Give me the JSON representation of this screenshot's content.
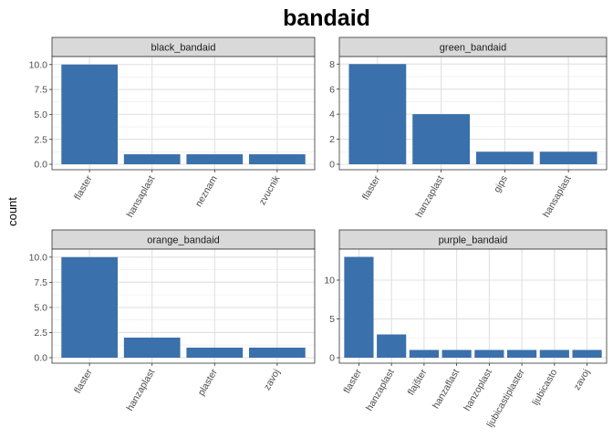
{
  "chart_data": {
    "type": "bar",
    "title": "bandaid",
    "ylabel": "count",
    "xlabel": "",
    "grid": true,
    "bar_color": "#3a70ab",
    "strip_fill": "#d9d9d9",
    "panels": [
      {
        "name": "black_bandaid",
        "categories": [
          "flaster",
          "hansaplast",
          "neznam",
          "zvucnik"
        ],
        "values": [
          10,
          1,
          1,
          1
        ],
        "ylim": [
          0,
          10.8
        ],
        "yticks": [
          0.0,
          2.5,
          5.0,
          7.5,
          10.0
        ],
        "ytick_labels": [
          "0.0",
          "2.5",
          "5.0",
          "7.5",
          "10.0"
        ]
      },
      {
        "name": "green_bandaid",
        "categories": [
          "flaster",
          "hanzaplast",
          "gips",
          "hansaplast"
        ],
        "values": [
          8,
          4,
          1,
          1
        ],
        "ylim": [
          0,
          8.6
        ],
        "yticks": [
          0,
          2,
          4,
          6,
          8
        ],
        "ytick_labels": [
          "0",
          "2",
          "4",
          "6",
          "8"
        ]
      },
      {
        "name": "orange_bandaid",
        "categories": [
          "flaster",
          "hanzaplast",
          "plaster",
          "zavoj"
        ],
        "values": [
          10,
          2,
          1,
          1
        ],
        "ylim": [
          0,
          10.8
        ],
        "yticks": [
          0.0,
          2.5,
          5.0,
          7.5,
          10.0
        ],
        "ytick_labels": [
          "0.0",
          "2.5",
          "5.0",
          "7.5",
          "10.0"
        ]
      },
      {
        "name": "purple_bandaid",
        "categories": [
          "flaster",
          "hanzaplast",
          "flajšter",
          "hanzaflast",
          "hanzoplast",
          "ljubicastiplaster",
          "ljubicasto",
          "zavoj"
        ],
        "values": [
          13,
          3,
          1,
          1,
          1,
          1,
          1,
          1
        ],
        "ylim": [
          0,
          14
        ],
        "yticks": [
          0,
          5,
          10
        ],
        "ytick_labels": [
          "0",
          "5",
          "10"
        ]
      }
    ]
  }
}
